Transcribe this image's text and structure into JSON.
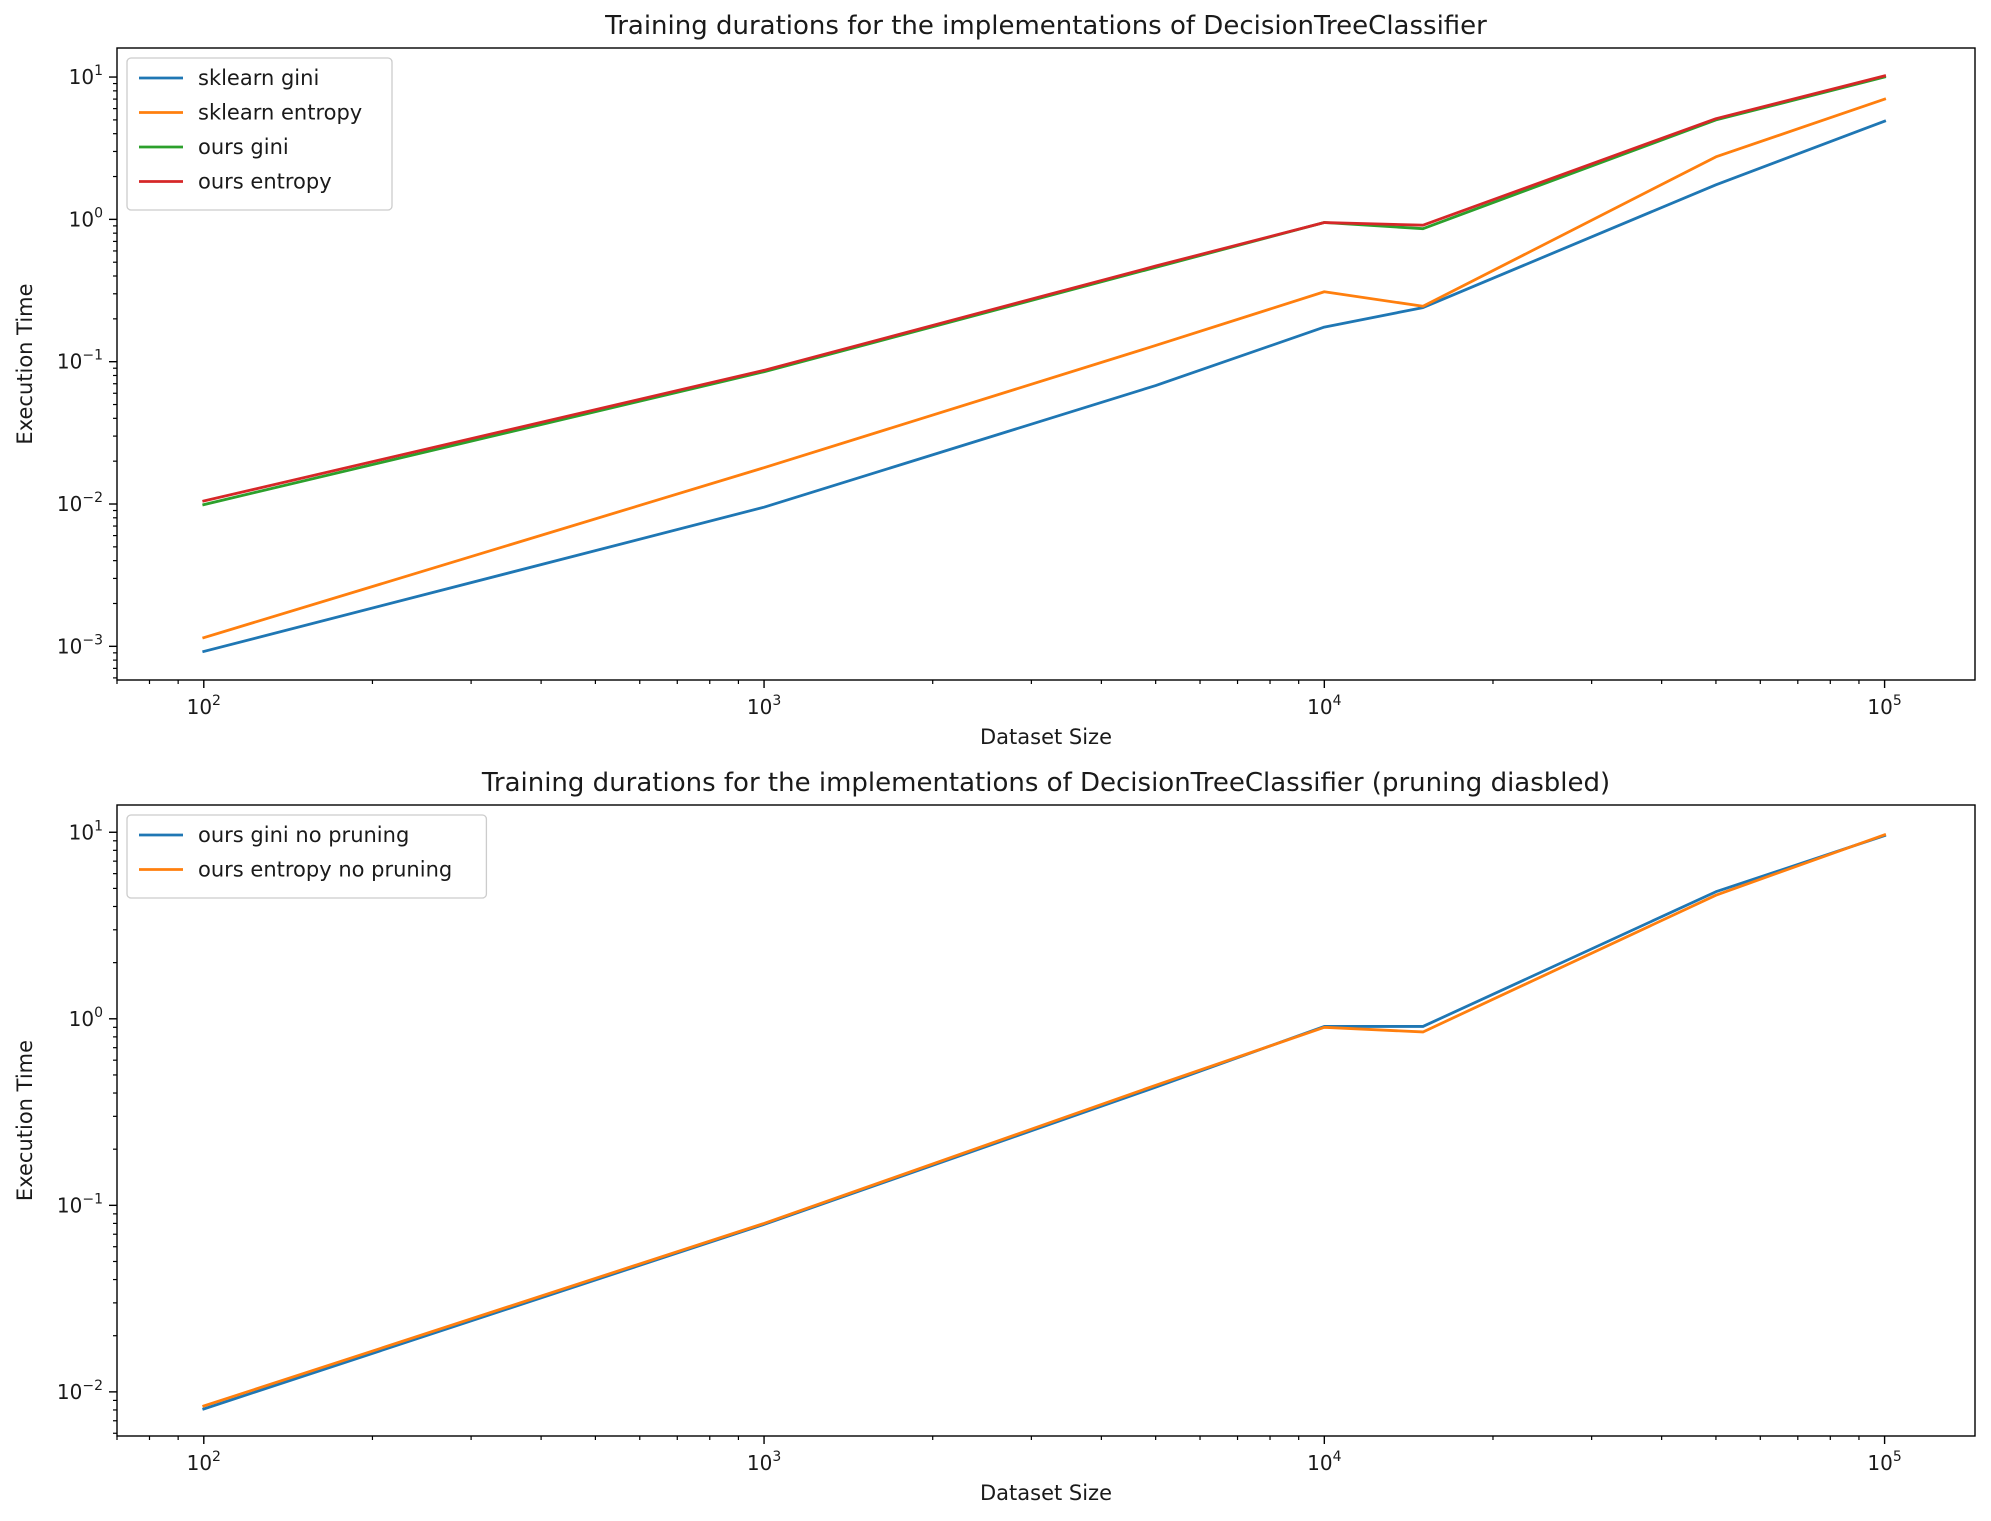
{
  "chart_data": [
    {
      "type": "line",
      "title": "Training durations for the implementations of DecisionTreeClassifier",
      "xlabel": "Dataset Size",
      "ylabel": "Execution Time",
      "xscale": "log",
      "yscale": "log",
      "xlim": [
        70,
        145000
      ],
      "ylim": [
        0.00058,
        16
      ],
      "xticks": [
        {
          "value": 100,
          "base": "10",
          "exp": "2"
        },
        {
          "value": 1000,
          "base": "10",
          "exp": "3"
        },
        {
          "value": 10000,
          "base": "10",
          "exp": "4"
        },
        {
          "value": 100000,
          "base": "10",
          "exp": "5"
        }
      ],
      "yticks": [
        {
          "value": 0.001,
          "base": "10",
          "exp": "−3"
        },
        {
          "value": 0.01,
          "base": "10",
          "exp": "−2"
        },
        {
          "value": 0.1,
          "base": "10",
          "exp": "−1"
        },
        {
          "value": 1,
          "base": "10",
          "exp": "0"
        },
        {
          "value": 10,
          "base": "10",
          "exp": "1"
        }
      ],
      "legend": "upper-left",
      "grid": false,
      "x": [
        100,
        1000,
        5000,
        10000,
        15000,
        50000,
        100000
      ],
      "series": [
        {
          "name": "sklearn gini",
          "color": "#1f77b4",
          "values": [
            0.00092,
            0.0095,
            0.068,
            0.175,
            0.24,
            1.75,
            4.9
          ]
        },
        {
          "name": "sklearn entropy",
          "color": "#ff7f0e",
          "values": [
            0.00115,
            0.018,
            0.13,
            0.31,
            0.245,
            2.75,
            7.0
          ]
        },
        {
          "name": "ours gini",
          "color": "#2ca02c",
          "values": [
            0.0099,
            0.085,
            0.46,
            0.95,
            0.86,
            5.0,
            10.0
          ]
        },
        {
          "name": "ours entropy",
          "color": "#d62728",
          "values": [
            0.0105,
            0.087,
            0.47,
            0.95,
            0.91,
            5.1,
            10.2
          ]
        }
      ]
    },
    {
      "type": "line",
      "title": "Training durations for the implementations of DecisionTreeClassifier (pruning diasbled)",
      "xlabel": "Dataset Size",
      "ylabel": "Execution Time",
      "xscale": "log",
      "yscale": "log",
      "xlim": [
        70,
        145000
      ],
      "ylim": [
        0.0058,
        14
      ],
      "xticks": [
        {
          "value": 100,
          "base": "10",
          "exp": "2"
        },
        {
          "value": 1000,
          "base": "10",
          "exp": "3"
        },
        {
          "value": 10000,
          "base": "10",
          "exp": "4"
        },
        {
          "value": 100000,
          "base": "10",
          "exp": "5"
        }
      ],
      "yticks": [
        {
          "value": 0.01,
          "base": "10",
          "exp": "−2"
        },
        {
          "value": 0.1,
          "base": "10",
          "exp": "−1"
        },
        {
          "value": 1,
          "base": "10",
          "exp": "0"
        },
        {
          "value": 10,
          "base": "10",
          "exp": "1"
        }
      ],
      "legend": "upper-left",
      "grid": false,
      "x": [
        100,
        1000,
        5000,
        10000,
        15000,
        50000,
        100000
      ],
      "series": [
        {
          "name": "ours gini no pruning",
          "color": "#1f77b4",
          "values": [
            0.0081,
            0.079,
            0.43,
            0.91,
            0.91,
            4.8,
            9.6
          ]
        },
        {
          "name": "ours entropy no pruning",
          "color": "#ff7f0e",
          "values": [
            0.0084,
            0.08,
            0.44,
            0.9,
            0.85,
            4.6,
            9.7
          ]
        }
      ]
    }
  ]
}
